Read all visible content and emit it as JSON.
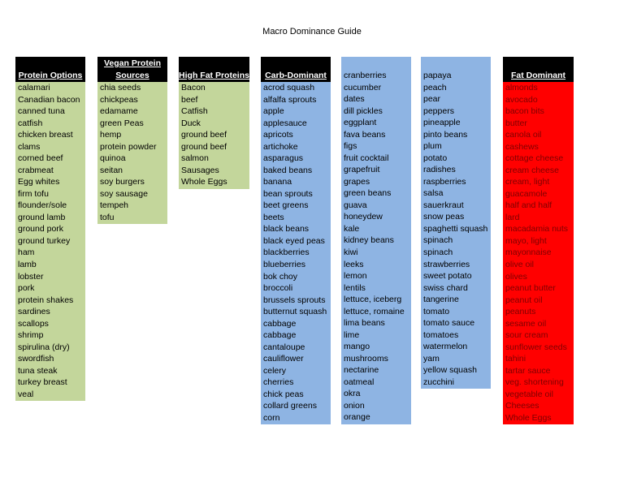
{
  "title": "Macro Dominance Guide",
  "columns": [
    {
      "header": [
        "Protein Options"
      ],
      "items": [
        "calamari",
        "Canadian bacon",
        "canned tuna",
        "catfish",
        "chicken breast",
        "clams",
        "corned beef",
        "crabmeat",
        "Egg whites",
        "firm tofu",
        "flounder/sole",
        "ground lamb",
        "ground pork",
        "ground turkey",
        "ham",
        "lamb",
        "lobster",
        "pork",
        "protein shakes",
        "sardines",
        "scallops",
        "shrimp",
        "spirulina (dry)",
        "swordfish",
        "tuna steak",
        "turkey breast",
        "veal"
      ]
    },
    {
      "header": [
        "Vegan Protein",
        "Sources"
      ],
      "items": [
        "chia seeds",
        "chickpeas",
        "edamame",
        "green Peas",
        "hemp",
        "protein powder",
        "quinoa",
        "seitan",
        "soy burgers",
        "soy sausage",
        "tempeh",
        "tofu"
      ]
    },
    {
      "header": [
        "High Fat Proteins"
      ],
      "items": [
        "Bacon",
        "beef",
        "Catfish",
        "Duck",
        "ground beef",
        "ground beef",
        "salmon",
        "Sausages",
        "Whole Eggs"
      ]
    },
    {
      "header": [
        "Carb-Dominant"
      ],
      "items": [
        "acrod squash",
        "alfalfa sprouts",
        "apple",
        "applesauce",
        "apricots",
        "artichoke",
        "asparagus",
        "baked beans",
        "banana",
        "bean sprouts",
        "beet greens",
        "beets",
        "black beans",
        "black eyed peas",
        "blackberries",
        "blueberries",
        "bok choy",
        "broccoli",
        "brussels sprouts",
        "butternut squash",
        "cabbage",
        "cabbage",
        "cantaloupe",
        "cauliflower",
        "celery",
        "cherries",
        "chick peas",
        "collard greens",
        "corn"
      ]
    },
    {
      "items": [
        "cranberries",
        "cucumber",
        "dates",
        "dill pickles",
        "eggplant",
        "fava beans",
        "figs",
        "fruit cocktail",
        "grapefruit",
        "grapes",
        "green beans",
        "guava",
        "honeydew",
        "kale",
        "kidney beans",
        "kiwi",
        "leeks",
        "lemon",
        "lentils",
        "lettuce, iceberg",
        "lettuce, romaine",
        "lima beans",
        "lime",
        "mango",
        "mushrooms",
        "nectarine",
        "oatmeal",
        "okra",
        "onion",
        "orange"
      ]
    },
    {
      "items": [
        "papaya",
        "peach",
        "pear",
        "peppers",
        "pineapple",
        "pinto beans",
        "plum",
        "potato",
        "radishes",
        "raspberries",
        "salsa",
        "sauerkraut",
        "snow peas",
        "spaghetti squash",
        "spinach",
        "spinach",
        "strawberries",
        "sweet potato",
        "swiss chard",
        "tangerine",
        "tomato",
        "tomato sauce",
        "tomatoes",
        "watermelon",
        "yam",
        "yellow squash",
        "zucchini"
      ]
    },
    {
      "header": [
        "Fat Dominant"
      ],
      "items": [
        "almonds",
        "avocado",
        "bacon bits",
        "butter",
        "canola oil",
        "cashews",
        "cottage cheese",
        "cream cheese",
        "cream, light",
        "guacamole",
        "half and half",
        "lard",
        "macadamia nuts",
        "mayo, light",
        "mayonnaise",
        "olive oil",
        "olives",
        "peanut butter",
        "peanut oil",
        "peanuts",
        "sesame oil",
        "sour cream",
        "sunflower seeds",
        "tahini",
        "tartar sauce",
        "veg. shortening",
        "vegetable oil",
        "Cheeses",
        "Whole Eggs"
      ]
    }
  ]
}
